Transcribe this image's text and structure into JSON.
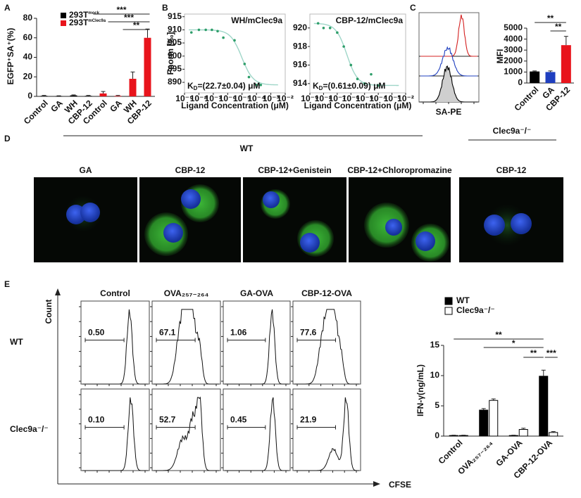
{
  "panel_labels": [
    "A",
    "B",
    "C",
    "D",
    "E"
  ],
  "panel_a": {
    "type": "bar",
    "ylabel": "EGFP⁺SA⁺(%)",
    "categories": [
      "Control",
      "GA",
      "WH",
      "CBP-12",
      "Control",
      "GA",
      "WH",
      "CBP-12"
    ],
    "series": [
      {
        "name": "293T",
        "sup": "mock",
        "color": "#000000",
        "values": [
          0.5,
          0.3,
          1,
          0.5
        ],
        "errors": [
          0.5,
          0.3,
          0.5,
          0.5
        ]
      },
      {
        "name": "293T",
        "sup": "mClec9a",
        "color": "#e8141c",
        "values": [
          3,
          0.5,
          18,
          60
        ],
        "errors": [
          2,
          0.5,
          7,
          9
        ]
      }
    ],
    "ylim": [
      0,
      80
    ],
    "yticks": [
      0,
      20,
      40,
      60,
      80
    ],
    "significance": [
      "***",
      "***",
      "**"
    ]
  },
  "panel_b": {
    "type": "scatter",
    "ylabel": "Fnorm [‰]",
    "xlabel": "Ligand Concentration (μM)",
    "charts": [
      {
        "title": "WH/mClec9a",
        "kd": {
          "k": "K",
          "sub": "D",
          "rest": "=(22.7±0.04) μM"
        },
        "x": [
          3e-09,
          1e-08,
          3e-08,
          8e-08,
          2e-07,
          5e-07,
          3e-06,
          1.5e-05,
          3e-05,
          0.0001,
          0.0002
        ],
        "y": [
          909,
          910,
          910,
          910,
          909.5,
          907,
          906,
          897,
          892,
          889,
          889
        ],
        "xlim": [
          1e-09,
          0.01
        ],
        "xticks": [
          {
            "value": 1e-09,
            "label": "10⁻⁹"
          },
          {
            "value": 1e-08,
            "label": "10⁻⁸"
          },
          {
            "value": 1e-07,
            "label": "10⁻⁷"
          },
          {
            "value": 1e-06,
            "label": "10⁻⁶"
          },
          {
            "value": 1e-05,
            "label": "10⁻⁵"
          },
          {
            "value": 0.0001,
            "label": "10⁻⁴"
          },
          {
            "value": 0.001,
            "label": "10⁻³"
          },
          {
            "value": 0.01,
            "label": "10⁻²"
          }
        ],
        "ylim": [
          886,
          916
        ],
        "yticks": [
          890,
          895,
          900,
          905,
          910,
          915
        ]
      },
      {
        "title": "CBP-12/mClec9a",
        "kd": {
          "k": "K",
          "sub": "D",
          "rest": "=(0.61±0.09) μM"
        },
        "x": [
          4e-09,
          1e-08,
          3e-08,
          1e-07,
          3e-07,
          1e-06,
          3e-06,
          1e-05,
          3e-05,
          0.0001
        ],
        "y": [
          920.5,
          920,
          920,
          919.5,
          918,
          916,
          914.5,
          914,
          915,
          913.8
        ],
        "xlim": [
          1e-09,
          0.01
        ],
        "xticks": [
          {
            "value": 1e-09,
            "label": "10⁻⁹"
          },
          {
            "value": 1e-08,
            "label": "10⁻⁸"
          },
          {
            "value": 1e-07,
            "label": "10⁻⁷"
          },
          {
            "value": 1e-06,
            "label": "10⁻⁶"
          },
          {
            "value": 1e-05,
            "label": "10⁻⁵"
          },
          {
            "value": 0.0001,
            "label": "10⁻⁴"
          },
          {
            "value": 0.001,
            "label": "10⁻³"
          },
          {
            "value": 0.01,
            "label": "10⁻²"
          }
        ],
        "ylim": [
          913,
          921.5
        ],
        "yticks": [
          914,
          916,
          918,
          920
        ]
      }
    ]
  },
  "panel_c": {
    "flow_xlabel": "SA-PE",
    "type": "bar",
    "ylabel": "MFI",
    "categories": [
      "Control",
      "GA",
      "CBP-12"
    ],
    "values": [
      1050,
      1000,
      3450
    ],
    "errors": [
      50,
      100,
      800
    ],
    "colors": [
      "#000000",
      "#1f3fbf",
      "#e8141c"
    ],
    "ylim": [
      0,
      5000
    ],
    "yticks": [
      0,
      1000,
      2000,
      3000,
      4000,
      5000
    ],
    "significance": [
      "**",
      "**"
    ]
  },
  "panel_d": {
    "group_labels": [
      "WT",
      "Clec9a⁻/⁻"
    ],
    "images": [
      "GA",
      "CBP-12",
      "CBP-12+Genistein",
      "CBP-12+Chloropromazine",
      "CBP-12"
    ]
  },
  "panel_e": {
    "columns": [
      "Control",
      "OVA₂₅₇₋₂₆₄",
      "GA-OVA",
      "CBP-12-OVA"
    ],
    "rows": [
      {
        "label": "WT",
        "gates": [
          "0.50",
          "67.1",
          "1.06",
          "77.6"
        ]
      },
      {
        "label": "Clec9a⁻/⁻",
        "gates": [
          "0.10",
          "52.7",
          "0.45",
          "21.9"
        ]
      }
    ],
    "y_axis": "Count",
    "x_axis": "CFSE",
    "chart": {
      "type": "bar",
      "ylabel": "IFN-γ(ng/mL)",
      "categories": [
        "Control",
        "OVA₂₅₇₋₂₆₄",
        "GA-OVA",
        "CBP-12-OVA"
      ],
      "series": [
        {
          "name": "WT",
          "color": "#000000",
          "values": [
            0.1,
            4.3,
            0.1,
            9.9
          ],
          "errors": [
            0.05,
            0.25,
            0.05,
            1
          ]
        },
        {
          "name": "Clec9a⁻/⁻",
          "color": "#ffffff",
          "values": [
            0.1,
            5.9,
            1.1,
            0.6
          ],
          "errors": [
            0.05,
            0.25,
            0.2,
            0.15
          ]
        }
      ],
      "ylim": [
        0,
        15
      ],
      "yticks": [
        0,
        5,
        10,
        15
      ],
      "significance": [
        "**",
        "*",
        "**",
        "***"
      ]
    }
  }
}
